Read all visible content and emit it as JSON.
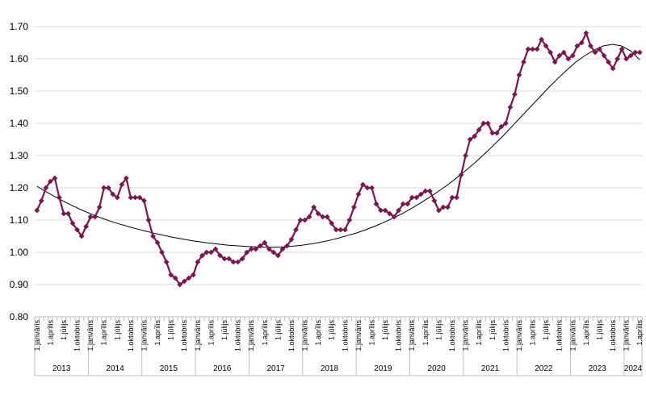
{
  "chart_data": {
    "type": "line",
    "title": "",
    "xlabel": "",
    "ylabel": "",
    "ylim": [
      0.8,
      1.7
    ],
    "yticks": [
      "0.80",
      "0.90",
      "1.00",
      "1.10",
      "1.20",
      "1.30",
      "1.40",
      "1.50",
      "1.60",
      "1.70"
    ],
    "grid": "horizontal",
    "legend": "none",
    "month_labels": [
      "1.janvāris",
      "",
      "",
      "1.aprīlis",
      "",
      "",
      "1.jūlijs",
      "",
      "",
      "1.oktobris",
      "",
      ""
    ],
    "years": [
      "2013",
      "2014",
      "2015",
      "2016",
      "2017",
      "2018",
      "2019",
      "2020",
      "2021",
      "2022",
      "2023",
      "2024"
    ],
    "colors": {
      "series": "#7b1650",
      "trend": "#000000",
      "grid": "#d9d9d9",
      "axis": "#bfbfbf"
    },
    "series": [
      {
        "marker": "diamond",
        "values": [
          1.13,
          1.16,
          1.2,
          1.22,
          1.23,
          1.17,
          1.12,
          1.12,
          1.09,
          1.07,
          1.05,
          1.08,
          1.11,
          1.11,
          1.14,
          1.2,
          1.2,
          1.18,
          1.17,
          1.21,
          1.23,
          1.17,
          1.17,
          1.17,
          1.16,
          1.1,
          1.05,
          1.03,
          1.0,
          0.97,
          0.93,
          0.92,
          0.9,
          0.91,
          0.92,
          0.93,
          0.97,
          0.99,
          1.0,
          1.0,
          1.01,
          0.99,
          0.98,
          0.98,
          0.97,
          0.97,
          0.98,
          1.0,
          1.01,
          1.01,
          1.02,
          1.03,
          1.01,
          1.0,
          0.99,
          1.01,
          1.02,
          1.04,
          1.07,
          1.1,
          1.1,
          1.11,
          1.14,
          1.12,
          1.11,
          1.11,
          1.09,
          1.07,
          1.07,
          1.07,
          1.1,
          1.14,
          1.18,
          1.21,
          1.2,
          1.2,
          1.15,
          1.13,
          1.13,
          1.12,
          1.11,
          1.13,
          1.15,
          1.15,
          1.17,
          1.17,
          1.18,
          1.19,
          1.19,
          1.16,
          1.13,
          1.14,
          1.14,
          1.17,
          1.17,
          1.24,
          1.3,
          1.35,
          1.36,
          1.38,
          1.4,
          1.4,
          1.37,
          1.37,
          1.39,
          1.4,
          1.45,
          1.49,
          1.55,
          1.59,
          1.63,
          1.63,
          1.63,
          1.66,
          1.64,
          1.62,
          1.59,
          1.61,
          1.62,
          1.6,
          1.61,
          1.64,
          1.65,
          1.68,
          1.64,
          1.62,
          1.63,
          1.61,
          1.59,
          1.57,
          1.6,
          1.63,
          1.6,
          1.61,
          1.62,
          1.62
        ]
      },
      {
        "type": "trendline",
        "values": [
          1.205,
          1.188,
          1.172,
          1.157,
          1.143,
          1.13,
          1.118,
          1.107,
          1.097,
          1.088,
          1.08,
          1.072,
          1.065,
          1.058,
          1.052,
          1.046,
          1.041,
          1.036,
          1.032,
          1.028,
          1.025,
          1.022,
          1.02,
          1.018,
          1.017,
          1.016,
          1.016,
          1.017,
          1.019,
          1.022,
          1.026,
          1.031,
          1.037,
          1.044,
          1.052,
          1.06,
          1.07,
          1.081,
          1.093,
          1.106,
          1.12,
          1.136,
          1.153,
          1.171,
          1.19,
          1.21,
          1.232,
          1.255,
          1.279,
          1.305,
          1.332,
          1.36,
          1.39,
          1.42,
          1.45,
          1.48,
          1.51,
          1.538,
          1.565,
          1.59,
          1.61,
          1.627,
          1.64,
          1.645,
          1.64,
          1.625,
          1.597
        ]
      }
    ]
  }
}
